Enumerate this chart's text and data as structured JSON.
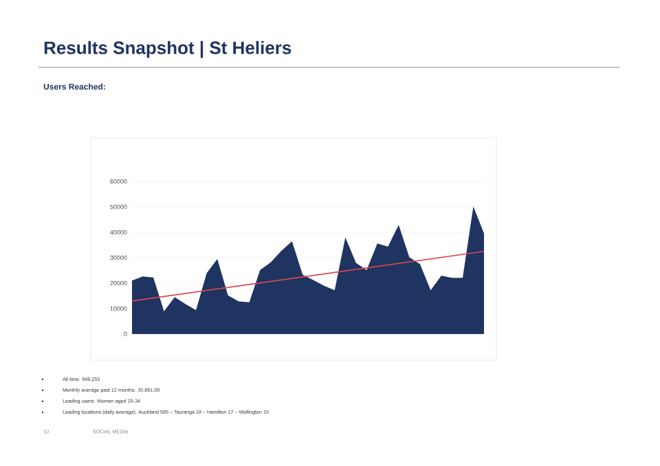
{
  "chart_data": {
    "type": "area",
    "title": "Results Snapshot | St Heliers",
    "subtitle": "Users Reached:",
    "categories": [
      null,
      null,
      null,
      null,
      null,
      null,
      null,
      null,
      null,
      null,
      null,
      null,
      null,
      null,
      null,
      null,
      null,
      null,
      null,
      null,
      null,
      null,
      null,
      null,
      null,
      null,
      null,
      null,
      null,
      null,
      null,
      null,
      null,
      null
    ],
    "series": [
      {
        "color": "#1f3461",
        "values": [
          21000,
          22600,
          22200,
          8900,
          14500,
          11800,
          9400,
          23900,
          29500,
          15200,
          12800,
          12500,
          25100,
          28200,
          32700,
          36500,
          23300,
          21200,
          19000,
          17200,
          38000,
          28000,
          25100,
          35600,
          34400,
          42900,
          30200,
          27500,
          17200,
          23000,
          22100,
          22100,
          50100,
          39600
        ]
      },
      {
        "type": "line",
        "color": "#d9474f",
        "values": [
          13000,
          null,
          null,
          null,
          null,
          null,
          null,
          null,
          null,
          null,
          null,
          null,
          null,
          null,
          null,
          null,
          null,
          null,
          null,
          null,
          null,
          null,
          null,
          null,
          null,
          null,
          null,
          null,
          null,
          null,
          null,
          null,
          null,
          32500
        ]
      }
    ],
    "ylim": [
      0,
      60000
    ],
    "yticks": [
      0,
      10000,
      20000,
      30000,
      40000,
      50000,
      60000
    ],
    "grid": "y",
    "annotations": [
      "All time: 849,255",
      "Monthly average past 12 months: 30,891.08",
      "Leading users: Women aged 25-34",
      "Leading locations (daily average): Auckland 585 – Tauranga 18 – Hamilton 17 – Wellington 15",
      "10",
      "SOCIAL MEDIA"
    ]
  }
}
